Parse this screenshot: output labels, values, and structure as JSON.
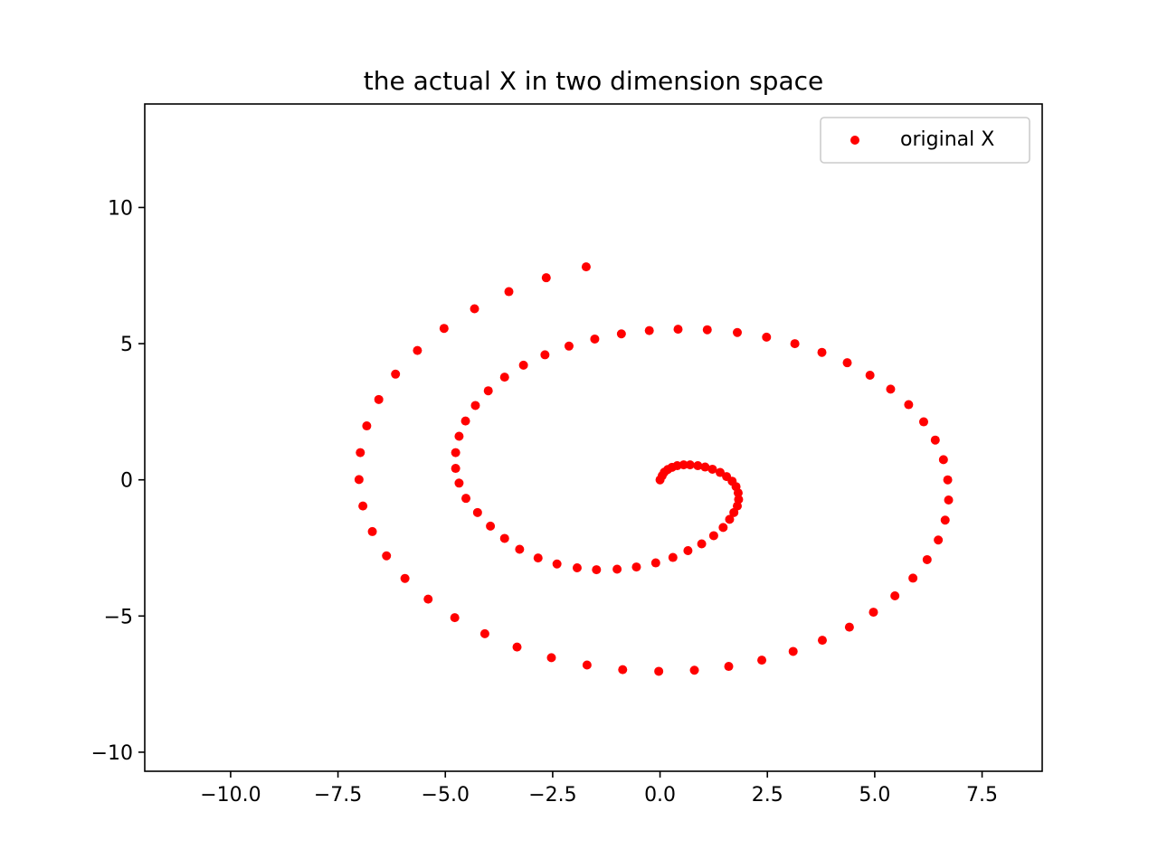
{
  "chart_data": {
    "type": "scatter",
    "title": "the actual X in two dimension space",
    "xlabel": "",
    "ylabel": "",
    "xlim": [
      -12.0,
      8.9
    ],
    "ylim": [
      -10.7,
      13.8
    ],
    "grid": false,
    "legend_position": "top-right",
    "x_ticks": [
      -10.0,
      -7.5,
      -5.0,
      -2.5,
      0.0,
      2.5,
      5.0,
      7.5
    ],
    "x_tick_labels": [
      "−10.0",
      "−7.5",
      "−5.0",
      "−2.5",
      "0.0",
      "2.5",
      "5.0",
      "7.5"
    ],
    "y_ticks": [
      -10,
      -5,
      0,
      5,
      10
    ],
    "y_tick_labels": [
      "−10",
      "−5",
      "0",
      "5",
      "10"
    ],
    "series": [
      {
        "name": "original X",
        "color": "#ff0000",
        "points": [
          [
            0.0,
            0.0
          ],
          [
            0.05,
            0.15
          ],
          [
            0.1,
            0.28
          ],
          [
            0.18,
            0.38
          ],
          [
            0.28,
            0.46
          ],
          [
            0.4,
            0.52
          ],
          [
            0.55,
            0.55
          ],
          [
            0.7,
            0.55
          ],
          [
            0.88,
            0.52
          ],
          [
            1.05,
            0.47
          ],
          [
            1.22,
            0.39
          ],
          [
            1.4,
            0.27
          ],
          [
            1.55,
            0.12
          ],
          [
            1.68,
            -0.05
          ],
          [
            1.77,
            -0.25
          ],
          [
            1.82,
            -0.48
          ],
          [
            1.83,
            -0.72
          ],
          [
            1.8,
            -0.96
          ],
          [
            1.72,
            -1.2
          ],
          [
            1.62,
            -1.45
          ],
          [
            1.47,
            -1.75
          ],
          [
            1.25,
            -2.05
          ],
          [
            0.97,
            -2.35
          ],
          [
            0.65,
            -2.6
          ],
          [
            0.3,
            -2.85
          ],
          [
            -0.1,
            -3.05
          ],
          [
            -0.55,
            -3.2
          ],
          [
            -1.0,
            -3.28
          ],
          [
            -1.48,
            -3.3
          ],
          [
            -1.93,
            -3.23
          ],
          [
            -2.4,
            -3.09
          ],
          [
            -2.84,
            -2.87
          ],
          [
            -3.27,
            -2.55
          ],
          [
            -3.62,
            -2.15
          ],
          [
            -3.95,
            -1.7
          ],
          [
            -4.25,
            -1.2
          ],
          [
            -4.52,
            -0.68
          ],
          [
            -4.68,
            -0.12
          ],
          [
            -4.76,
            0.42
          ],
          [
            -4.76,
            1.0
          ],
          [
            -4.68,
            1.6
          ],
          [
            -4.53,
            2.16
          ],
          [
            -4.3,
            2.73
          ],
          [
            -4.0,
            3.27
          ],
          [
            -3.62,
            3.77
          ],
          [
            -3.18,
            4.21
          ],
          [
            -2.68,
            4.59
          ],
          [
            -2.12,
            4.91
          ],
          [
            -1.52,
            5.17
          ],
          [
            -0.9,
            5.36
          ],
          [
            -0.25,
            5.48
          ],
          [
            0.42,
            5.53
          ],
          [
            1.1,
            5.51
          ],
          [
            1.8,
            5.41
          ],
          [
            2.48,
            5.24
          ],
          [
            3.14,
            5.0
          ],
          [
            3.77,
            4.68
          ],
          [
            4.36,
            4.3
          ],
          [
            4.89,
            3.84
          ],
          [
            5.37,
            3.33
          ],
          [
            5.79,
            2.76
          ],
          [
            6.14,
            2.13
          ],
          [
            6.41,
            1.46
          ],
          [
            6.6,
            0.74
          ],
          [
            6.7,
            0.0
          ],
          [
            6.72,
            -0.74
          ],
          [
            6.64,
            -1.48
          ],
          [
            6.48,
            -2.21
          ],
          [
            6.22,
            -2.93
          ],
          [
            5.89,
            -3.61
          ],
          [
            5.47,
            -4.26
          ],
          [
            4.97,
            -4.86
          ],
          [
            4.41,
            -5.41
          ],
          [
            3.78,
            -5.89
          ],
          [
            3.1,
            -6.3
          ],
          [
            2.37,
            -6.62
          ],
          [
            1.6,
            -6.85
          ],
          [
            0.8,
            -6.99
          ],
          [
            -0.03,
            -7.03
          ],
          [
            -0.87,
            -6.97
          ],
          [
            -1.7,
            -6.8
          ],
          [
            -2.53,
            -6.53
          ],
          [
            -3.33,
            -6.14
          ],
          [
            -4.08,
            -5.65
          ],
          [
            -4.78,
            -5.06
          ],
          [
            -5.4,
            -4.38
          ],
          [
            -5.94,
            -3.62
          ],
          [
            -6.37,
            -2.79
          ],
          [
            -6.7,
            -1.9
          ],
          [
            -6.92,
            -0.96
          ],
          [
            -7.01,
            0.01
          ],
          [
            -6.98,
            1.0
          ],
          [
            -6.83,
            1.98
          ],
          [
            -6.55,
            2.95
          ],
          [
            -6.16,
            3.88
          ],
          [
            -5.65,
            4.75
          ],
          [
            -5.03,
            5.56
          ],
          [
            -4.32,
            6.28
          ],
          [
            -3.52,
            6.91
          ],
          [
            -2.65,
            7.42
          ],
          [
            -1.72,
            7.82
          ]
        ]
      }
    ]
  }
}
